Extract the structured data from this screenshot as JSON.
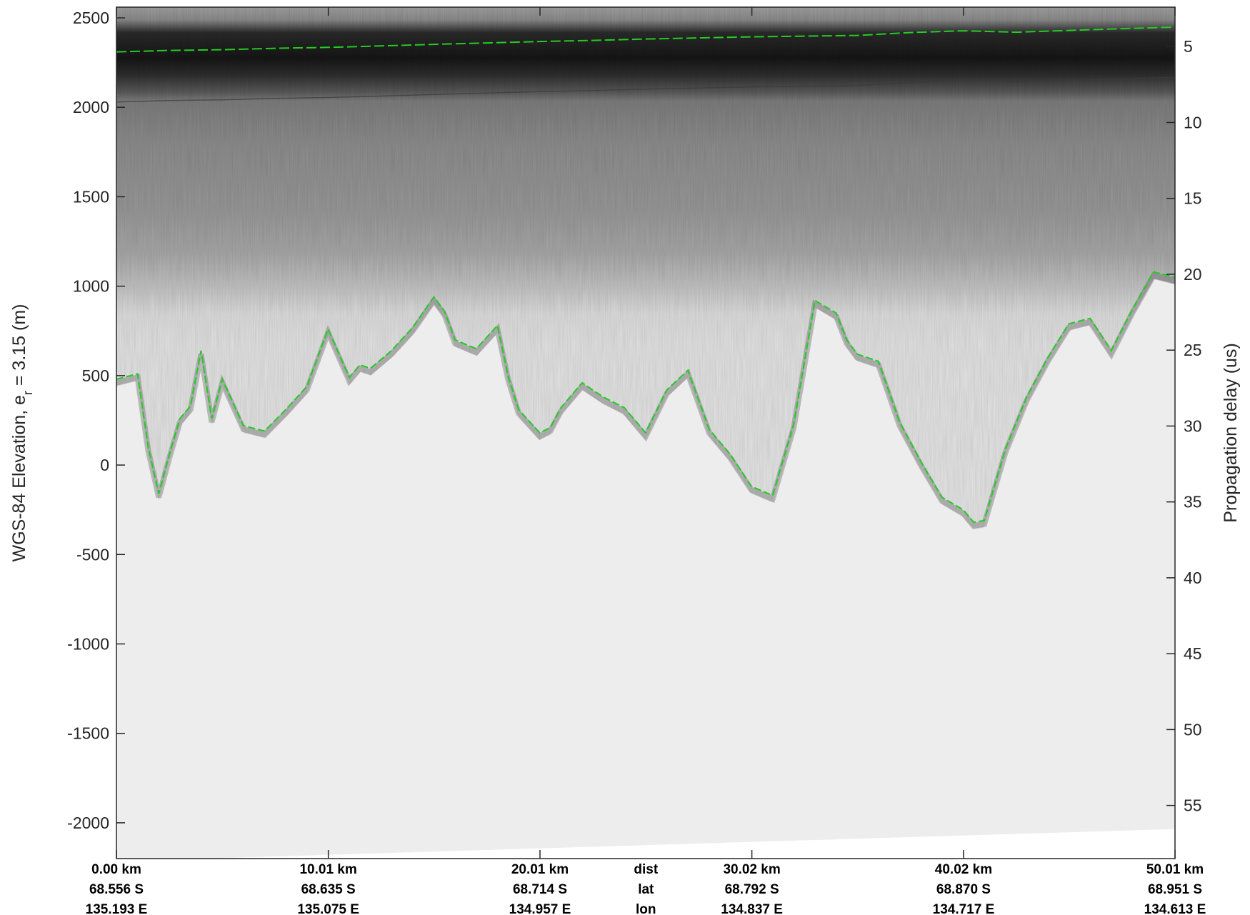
{
  "chart_data": {
    "type": "radar-echogram",
    "ylabel_left": "WGS-84 Elevation, e",
    "ylabel_left_sub": "r",
    "ylabel_left_tail": " = 3.15 (m)",
    "ylabel_right": "Propagation delay (us)",
    "left_axis": {
      "ylim": [
        -2200,
        2560
      ],
      "ticks": [
        2500,
        2000,
        1500,
        1000,
        500,
        0,
        -500,
        -1000,
        -1500,
        -2000
      ],
      "tick_labels": [
        "2500",
        "2000",
        "1500",
        "1000",
        "500",
        "0",
        "-500",
        "-1000",
        "-1500",
        "-2000"
      ]
    },
    "right_axis": {
      "ylim": [
        2.4,
        58.5
      ],
      "ticks": [
        5,
        10,
        15,
        20,
        25,
        30,
        35,
        40,
        45,
        50,
        55
      ],
      "tick_labels": [
        "5",
        "10",
        "15",
        "20",
        "25",
        "30",
        "35",
        "40",
        "45",
        "50",
        "55"
      ]
    },
    "x_axis": {
      "xlim": [
        0,
        50.01
      ],
      "ticks": [
        0,
        10.01,
        20.01,
        30.02,
        40.02,
        50.01
      ],
      "row_labels": {
        "dist": "dist",
        "lat": "lat",
        "lon": "lon"
      },
      "dist": [
        "0.00 km",
        "10.01 km",
        "20.01 km",
        "30.02 km",
        "40.02 km",
        "50.01 km"
      ],
      "lat": [
        "68.556 S",
        "68.635 S",
        "68.714 S",
        "68.792 S",
        "68.870 S",
        "68.951 S"
      ],
      "lon": [
        "135.193 E",
        "135.075 E",
        "134.957 E",
        "134.837 E",
        "134.717 E",
        "134.613 E"
      ]
    },
    "series": [
      {
        "role": "ice surface pick",
        "color": "#22cc22",
        "x": [
          0,
          2.5,
          5,
          7.5,
          10,
          12.5,
          15,
          17.5,
          20,
          22.5,
          25,
          27.5,
          30,
          32.5,
          35,
          37.5,
          40,
          42.5,
          45,
          47.5,
          50
        ],
        "y": [
          2310,
          2318,
          2322,
          2330,
          2335,
          2343,
          2352,
          2360,
          2368,
          2374,
          2382,
          2388,
          2394,
          2398,
          2402,
          2418,
          2428,
          2420,
          2430,
          2440,
          2448
        ]
      },
      {
        "role": "bed pick",
        "color": "#22cc22",
        "x": [
          0,
          1,
          1.5,
          2,
          2.5,
          3,
          3.5,
          4,
          4.5,
          5,
          6,
          7,
          8,
          9,
          10,
          11,
          11.5,
          12,
          13,
          14,
          15,
          15.5,
          16,
          17,
          18,
          18.5,
          19,
          20,
          20.5,
          21,
          22,
          23,
          24,
          25,
          26,
          27,
          28,
          29,
          30,
          31,
          32,
          33,
          34,
          34.5,
          35,
          36,
          37,
          38,
          39,
          40,
          40.5,
          41,
          42,
          43,
          44,
          45,
          46,
          47,
          48,
          49,
          50
        ],
        "y": [
          480,
          510,
          100,
          -160,
          60,
          260,
          330,
          640,
          260,
          480,
          220,
          190,
          310,
          440,
          760,
          490,
          560,
          540,
          640,
          770,
          940,
          860,
          700,
          650,
          780,
          500,
          310,
          180,
          210,
          320,
          460,
          380,
          320,
          180,
          420,
          530,
          200,
          60,
          -120,
          -170,
          230,
          920,
          850,
          700,
          620,
          580,
          240,
          20,
          -180,
          -250,
          -320,
          -310,
          90,
          380,
          600,
          790,
          820,
          640,
          870,
          1080,
          1050
        ]
      }
    ]
  }
}
